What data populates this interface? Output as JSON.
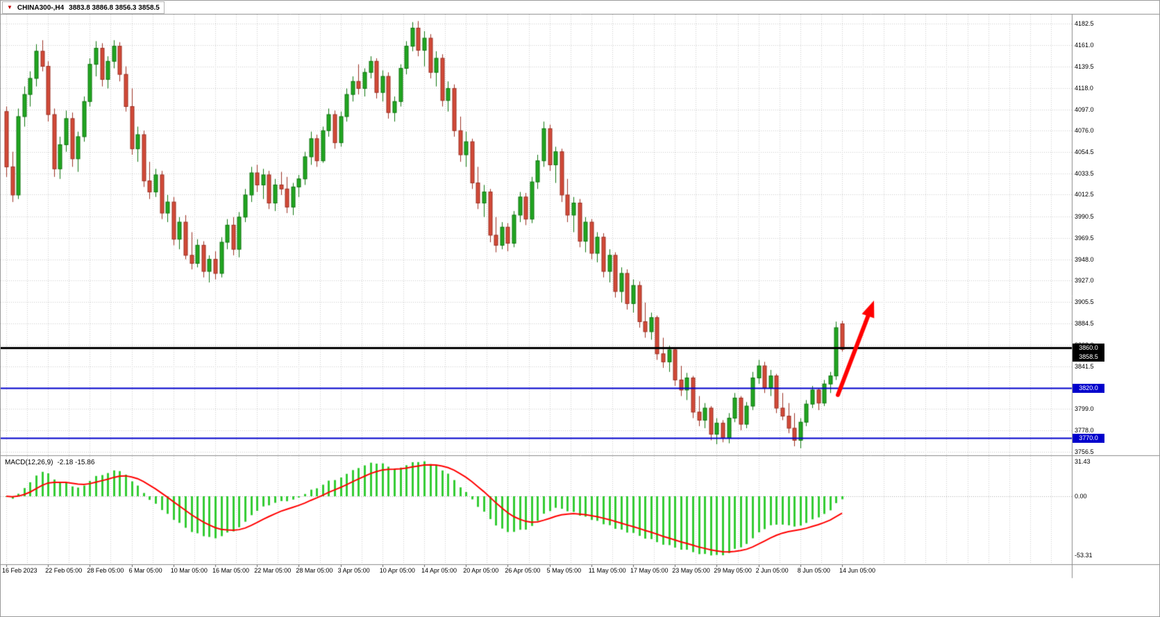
{
  "header": {
    "dropdown_icon": "▼",
    "symbol_timeframe": "CHINA300-,H4",
    "ohlc": "3883.8 3886.8 3856.3 3858.5"
  },
  "colors": {
    "up": "#21a621",
    "up_border": "#0e750e",
    "down": "#d24a38",
    "down_border": "#9c2f22",
    "grid": "#cccccc",
    "separator": "#8c8c8c",
    "macd_hist": "#33cc33",
    "macd_signal": "#ff0000",
    "arrow": "#ff0000"
  },
  "chart_data": {
    "type": "candlestick",
    "title": "CHINA300-,H4",
    "symbol": "CHINA300-",
    "timeframe": "H4",
    "last_ohlc": {
      "open": 3883.8,
      "high": 3886.8,
      "low": 3856.3,
      "close": 3858.5
    },
    "price_axis": {
      "min": 3756.5,
      "max": 4182.5,
      "ticks": [
        "4182.5",
        "4161.0",
        "4139.5",
        "4118.0",
        "4097.0",
        "4076.0",
        "4054.5",
        "4033.5",
        "4012.5",
        "3990.5",
        "3969.5",
        "3948.0",
        "3927.0",
        "3905.5",
        "3884.5",
        "3863.0",
        "3841.5",
        "3820.0",
        "3799.0",
        "3778.0",
        "3756.5"
      ]
    },
    "time_axis": {
      "candles_per_label": 7,
      "labels": [
        "16 Feb 2023",
        "22 Feb 05:00",
        "28 Feb 05:00",
        "6 Mar 05:00",
        "10 Mar 05:00",
        "16 Mar 05:00",
        "22 Mar 05:00",
        "28 Mar 05:00",
        "3 Apr 05:00",
        "10 Apr 05:00",
        "14 Apr 05:00",
        "20 Apr 05:00",
        "26 Apr 05:00",
        "5 May 05:00",
        "11 May 05:00",
        "17 May 05:00",
        "23 May 05:00",
        "29 May 05:00",
        "2 Jun 05:00",
        "8 Jun 05:00",
        "14 Jun 05:00"
      ]
    },
    "levels": [
      {
        "price": 3860.0,
        "label": "3860.0",
        "color": "#000000",
        "width": 3
      },
      {
        "price": 3820.0,
        "label": "3820.0",
        "color": "#0000cc",
        "width": 2
      },
      {
        "price": 3770.0,
        "label": "3770.0",
        "color": "#0000cc",
        "width": 2
      }
    ],
    "bid": {
      "price": 3858.5,
      "label": "3858.5"
    },
    "macd": {
      "display": "MACD(12,26,9)",
      "values_display": "-2.18 -15.86",
      "params": [
        12,
        26,
        9
      ],
      "main_value": -2.18,
      "signal_value": -15.86,
      "axis": {
        "min": -53.31,
        "max": 31.43
      },
      "axis_ticks": [
        "31.43",
        "0.00",
        "-53.31"
      ]
    },
    "annotation_arrow": {
      "color": "#ff0000",
      "direction": "up-right"
    },
    "candles": [
      [
        4095,
        4100,
        4030,
        4040
      ],
      [
        4040,
        4055,
        4005,
        4012
      ],
      [
        4012,
        4098,
        4008,
        4090
      ],
      [
        4090,
        4120,
        4080,
        4112
      ],
      [
        4112,
        4135,
        4100,
        4128
      ],
      [
        4128,
        4162,
        4120,
        4155
      ],
      [
        4155,
        4166,
        4135,
        4140
      ],
      [
        4140,
        4145,
        4085,
        4092
      ],
      [
        4092,
        4098,
        4030,
        4038
      ],
      [
        4038,
        4070,
        4028,
        4062
      ],
      [
        4062,
        4096,
        4055,
        4088
      ],
      [
        4088,
        4094,
        4040,
        4048
      ],
      [
        4048,
        4075,
        4035,
        4070
      ],
      [
        4070,
        4110,
        4065,
        4105
      ],
      [
        4105,
        4148,
        4100,
        4142
      ],
      [
        4142,
        4165,
        4130,
        4158
      ],
      [
        4158,
        4163,
        4120,
        4127
      ],
      [
        4127,
        4150,
        4118,
        4145
      ],
      [
        4145,
        4166,
        4138,
        4160
      ],
      [
        4160,
        4164,
        4125,
        4132
      ],
      [
        4132,
        4140,
        4095,
        4100
      ],
      [
        4100,
        4118,
        4052,
        4058
      ],
      [
        4058,
        4080,
        4045,
        4072
      ],
      [
        4072,
        4076,
        4020,
        4026
      ],
      [
        4026,
        4045,
        4008,
        4015
      ],
      [
        4015,
        4038,
        4010,
        4032
      ],
      [
        4032,
        4036,
        3988,
        3994
      ],
      [
        3994,
        4012,
        3985,
        4005
      ],
      [
        4005,
        4010,
        3962,
        3968
      ],
      [
        3968,
        3990,
        3958,
        3985
      ],
      [
        3985,
        3992,
        3948,
        3952
      ],
      [
        3952,
        3975,
        3938,
        3944
      ],
      [
        3944,
        3968,
        3940,
        3962
      ],
      [
        3962,
        3966,
        3930,
        3936
      ],
      [
        3936,
        3952,
        3925,
        3948
      ],
      [
        3948,
        3956,
        3928,
        3934
      ],
      [
        3934,
        3970,
        3930,
        3965
      ],
      [
        3965,
        3988,
        3958,
        3982
      ],
      [
        3982,
        3990,
        3952,
        3958
      ],
      [
        3958,
        3995,
        3950,
        3990
      ],
      [
        3990,
        4018,
        3985,
        4012
      ],
      [
        4012,
        4040,
        4005,
        4034
      ],
      [
        4034,
        4042,
        4015,
        4022
      ],
      [
        4022,
        4038,
        4008,
        4032
      ],
      [
        4032,
        4036,
        3998,
        4004
      ],
      [
        4004,
        4028,
        3996,
        4022
      ],
      [
        4022,
        4035,
        4012,
        4018
      ],
      [
        4018,
        4030,
        3994,
        4000
      ],
      [
        4000,
        4024,
        3992,
        4020
      ],
      [
        4020,
        4032,
        4010,
        4028
      ],
      [
        4028,
        4055,
        4022,
        4050
      ],
      [
        4050,
        4075,
        4042,
        4068
      ],
      [
        4068,
        4072,
        4040,
        4046
      ],
      [
        4046,
        4080,
        4044,
        4076
      ],
      [
        4076,
        4098,
        4070,
        4092
      ],
      [
        4092,
        4096,
        4058,
        4064
      ],
      [
        4064,
        4095,
        4060,
        4090
      ],
      [
        4090,
        4118,
        4085,
        4112
      ],
      [
        4112,
        4130,
        4105,
        4125
      ],
      [
        4125,
        4142,
        4112,
        4118
      ],
      [
        4118,
        4138,
        4110,
        4134
      ],
      [
        4134,
        4150,
        4128,
        4145
      ],
      [
        4145,
        4148,
        4108,
        4114
      ],
      [
        4114,
        4136,
        4105,
        4130
      ],
      [
        4130,
        4134,
        4088,
        4094
      ],
      [
        4094,
        4110,
        4085,
        4105
      ],
      [
        4105,
        4142,
        4100,
        4138
      ],
      [
        4138,
        4165,
        4132,
        4160
      ],
      [
        4160,
        4184,
        4155,
        4178
      ],
      [
        4178,
        4185,
        4150,
        4156
      ],
      [
        4156,
        4175,
        4140,
        4168
      ],
      [
        4168,
        4172,
        4128,
        4134
      ],
      [
        4134,
        4155,
        4120,
        4148
      ],
      [
        4148,
        4152,
        4100,
        4106
      ],
      [
        4106,
        4125,
        4095,
        4118
      ],
      [
        4118,
        4122,
        4070,
        4076
      ],
      [
        4076,
        4090,
        4045,
        4052
      ],
      [
        4052,
        4075,
        4040,
        4065
      ],
      [
        4065,
        4068,
        4018,
        4024
      ],
      [
        4024,
        4040,
        3998,
        4004
      ],
      [
        4004,
        4022,
        3990,
        4015
      ],
      [
        4015,
        4018,
        3965,
        3972
      ],
      [
        3972,
        3990,
        3955,
        3962
      ],
      [
        3962,
        3985,
        3958,
        3980
      ],
      [
        3980,
        3984,
        3956,
        3964
      ],
      [
        3964,
        3996,
        3960,
        3992
      ],
      [
        3992,
        4015,
        3985,
        4010
      ],
      [
        4010,
        4014,
        3982,
        3988
      ],
      [
        3988,
        4030,
        3984,
        4025
      ],
      [
        4025,
        4052,
        4018,
        4046
      ],
      [
        4046,
        4085,
        4040,
        4078
      ],
      [
        4078,
        4082,
        4036,
        4042
      ],
      [
        4042,
        4060,
        4024,
        4055
      ],
      [
        4055,
        4058,
        4005,
        4012
      ],
      [
        4012,
        4028,
        3985,
        3992
      ],
      [
        3992,
        4010,
        3975,
        4004
      ],
      [
        4004,
        4008,
        3960,
        3966
      ],
      [
        3966,
        3990,
        3955,
        3985
      ],
      [
        3985,
        3988,
        3948,
        3954
      ],
      [
        3954,
        3975,
        3945,
        3970
      ],
      [
        3970,
        3974,
        3930,
        3936
      ],
      [
        3936,
        3958,
        3925,
        3952
      ],
      [
        3952,
        3955,
        3910,
        3916
      ],
      [
        3916,
        3940,
        3905,
        3934
      ],
      [
        3934,
        3938,
        3898,
        3904
      ],
      [
        3904,
        3928,
        3895,
        3922
      ],
      [
        3922,
        3926,
        3880,
        3886
      ],
      [
        3886,
        3905,
        3870,
        3876
      ],
      [
        3876,
        3895,
        3868,
        3890
      ],
      [
        3890,
        3892,
        3848,
        3854
      ],
      [
        3854,
        3870,
        3840,
        3846
      ],
      [
        3846,
        3862,
        3836,
        3858
      ],
      [
        3858,
        3860,
        3822,
        3828
      ],
      [
        3828,
        3842,
        3812,
        3818
      ],
      [
        3818,
        3835,
        3808,
        3830
      ],
      [
        3830,
        3832,
        3790,
        3796
      ],
      [
        3796,
        3812,
        3782,
        3788
      ],
      [
        3788,
        3805,
        3780,
        3800
      ],
      [
        3800,
        3802,
        3768,
        3774
      ],
      [
        3774,
        3790,
        3764,
        3785
      ],
      [
        3785,
        3788,
        3766,
        3770
      ],
      [
        3770,
        3795,
        3765,
        3790
      ],
      [
        3790,
        3815,
        3786,
        3810
      ],
      [
        3810,
        3812,
        3778,
        3784
      ],
      [
        3784,
        3806,
        3780,
        3802
      ],
      [
        3802,
        3836,
        3798,
        3830
      ],
      [
        3830,
        3848,
        3824,
        3842
      ],
      [
        3842,
        3846,
        3815,
        3820
      ],
      [
        3820,
        3838,
        3812,
        3832
      ],
      [
        3832,
        3834,
        3795,
        3800
      ],
      [
        3800,
        3815,
        3788,
        3792
      ],
      [
        3792,
        3805,
        3775,
        3780
      ],
      [
        3780,
        3795,
        3762,
        3768
      ],
      [
        3768,
        3790,
        3760,
        3786
      ],
      [
        3786,
        3808,
        3782,
        3804
      ],
      [
        3804,
        3822,
        3800,
        3818
      ],
      [
        3818,
        3820,
        3798,
        3805
      ],
      [
        3805,
        3828,
        3802,
        3824
      ],
      [
        3824,
        3836,
        3815,
        3832
      ],
      [
        3832,
        3886,
        3828,
        3880
      ],
      [
        3883.8,
        3886.8,
        3856.3,
        3858.5
      ]
    ]
  }
}
